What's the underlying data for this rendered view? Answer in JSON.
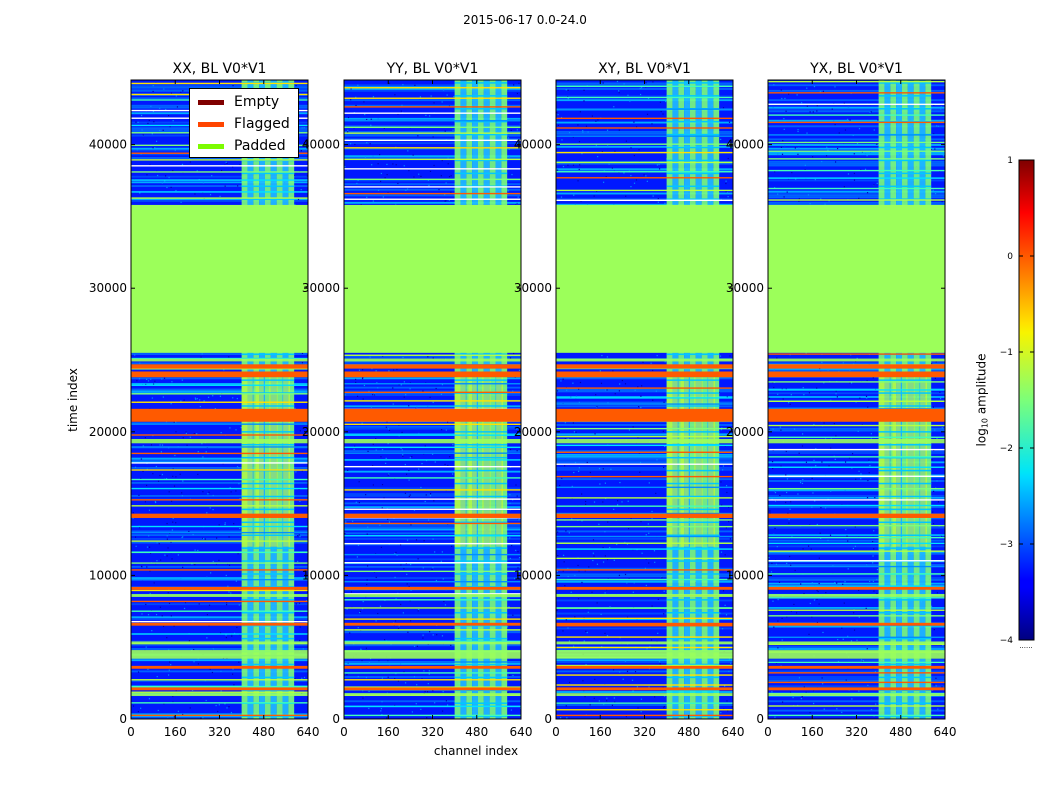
{
  "figure": {
    "suptitle": "2015-06-17 0.0-24.0",
    "xlabel": "channel index",
    "ylabel": "time index"
  },
  "legend": {
    "items": [
      {
        "label": "Empty",
        "color": "#800000"
      },
      {
        "label": "Flagged",
        "color": "#ff4500"
      },
      {
        "label": "Padded",
        "color": "#7cfc00"
      }
    ]
  },
  "colorbar": {
    "label_main": "log",
    "label_sub": "10",
    "label_rest": " amplitude",
    "range": [
      -4,
      1
    ],
    "ticks": [
      "1",
      "0",
      "−1",
      "−2",
      "−3",
      "−4"
    ],
    "tick_values": [
      1,
      0,
      -1,
      -2,
      -3,
      -4
    ],
    "extra_ticks": "......"
  },
  "chart_data": {
    "type": "heatmap",
    "panels": [
      {
        "title": "XX, BL V0*V1",
        "id": "xx"
      },
      {
        "title": "YY, BL V0*V1",
        "id": "yy"
      },
      {
        "title": "XY, BL V0*V1",
        "id": "xy"
      },
      {
        "title": "YX, BL V0*V1",
        "id": "yx"
      }
    ],
    "xlim": [
      0,
      640
    ],
    "ylim": [
      0,
      44500
    ],
    "xticks": [
      0,
      160,
      320,
      480,
      640
    ],
    "yticks": [
      0,
      10000,
      20000,
      30000,
      40000
    ],
    "padded_region": [
      25500,
      35800
    ],
    "signal_channel_range": [
      400,
      590
    ],
    "flagged_time_ranges": [
      [
        20700,
        21600
      ],
      [
        23800,
        24200
      ],
      [
        14000,
        14300
      ],
      [
        9000,
        9200
      ],
      [
        6500,
        6700
      ],
      [
        3500,
        3700
      ],
      [
        2000,
        2200
      ],
      [
        24400,
        24700
      ]
    ],
    "padded_stripes": [
      [
        19200,
        19500
      ],
      [
        4200,
        4800
      ],
      [
        5200,
        5400
      ],
      [
        1600,
        1800
      ],
      [
        24900,
        25100
      ],
      [
        8500,
        8700
      ]
    ]
  }
}
